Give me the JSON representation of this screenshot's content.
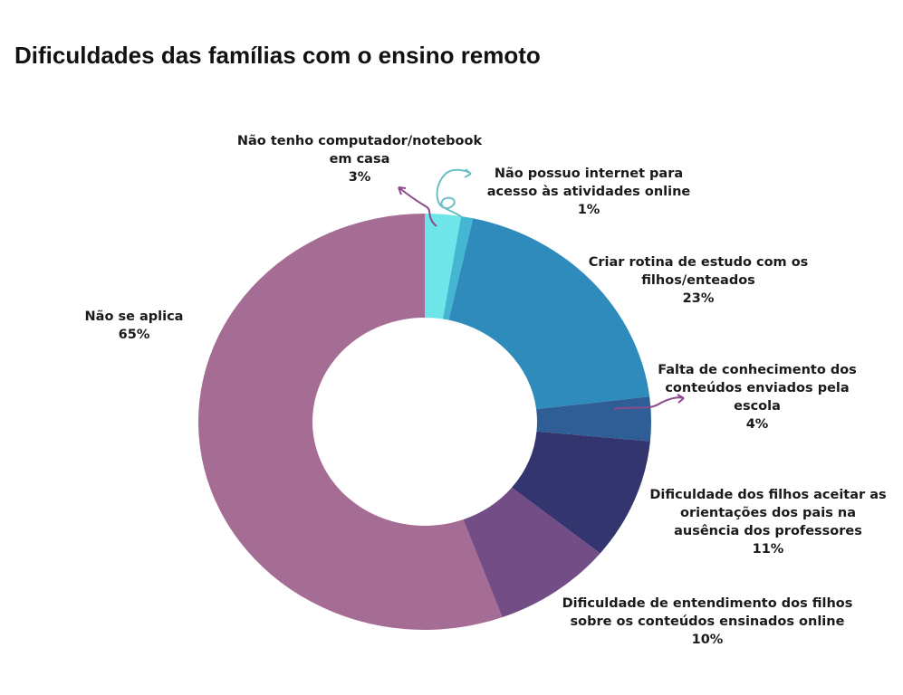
{
  "chart_data": {
    "type": "pie",
    "variant": "donut",
    "title": "Dificuldades das famílias com o ensino remoto",
    "slices": [
      {
        "label": "Não tenho computador/notebook em casa",
        "lines": [
          "Não tenho computador/notebook",
          "em casa"
        ],
        "value": 3,
        "pct": "3%",
        "color": "#6ee6e9"
      },
      {
        "label": "Não possuo internet para acesso às atividades online",
        "lines": [
          "Não possuo internet para",
          "acesso às atividades online"
        ],
        "value": 1,
        "pct": "1%",
        "color": "#45b6d2"
      },
      {
        "label": "Criar rotina de estudo com os filhos/enteados",
        "lines": [
          "Criar rotina de estudo com os",
          "filhos/enteados"
        ],
        "value": 23,
        "pct": "23%",
        "color": "#2e8bbb"
      },
      {
        "label": "Falta de conhecimento dos conteúdos enviados pela escola",
        "lines": [
          "Falta de conhecimento dos",
          "conteúdos enviados pela",
          "escola"
        ],
        "value": 4,
        "pct": "4%",
        "color": "#2f5e97"
      },
      {
        "label": "Dificuldade dos filhos aceitar as orientações dos pais na ausência dos professores",
        "lines": [
          "Dificuldade dos filhos aceitar as",
          "orientações dos pais na",
          "ausência dos professores"
        ],
        "value": 11,
        "pct": "11%",
        "color": "#33366e"
      },
      {
        "label": "Dificuldade de entendimento dos filhos sobre os conteúdos ensinados online",
        "lines": [
          "Dificuldade de entendimento dos filhos",
          "sobre os conteúdos ensinados online"
        ],
        "value": 10,
        "pct": "10%",
        "color": "#734d86"
      },
      {
        "label": "Não se aplica",
        "lines": [
          "Não se aplica"
        ],
        "value": 65,
        "pct": "65%",
        "color": "#a56c94"
      }
    ]
  }
}
